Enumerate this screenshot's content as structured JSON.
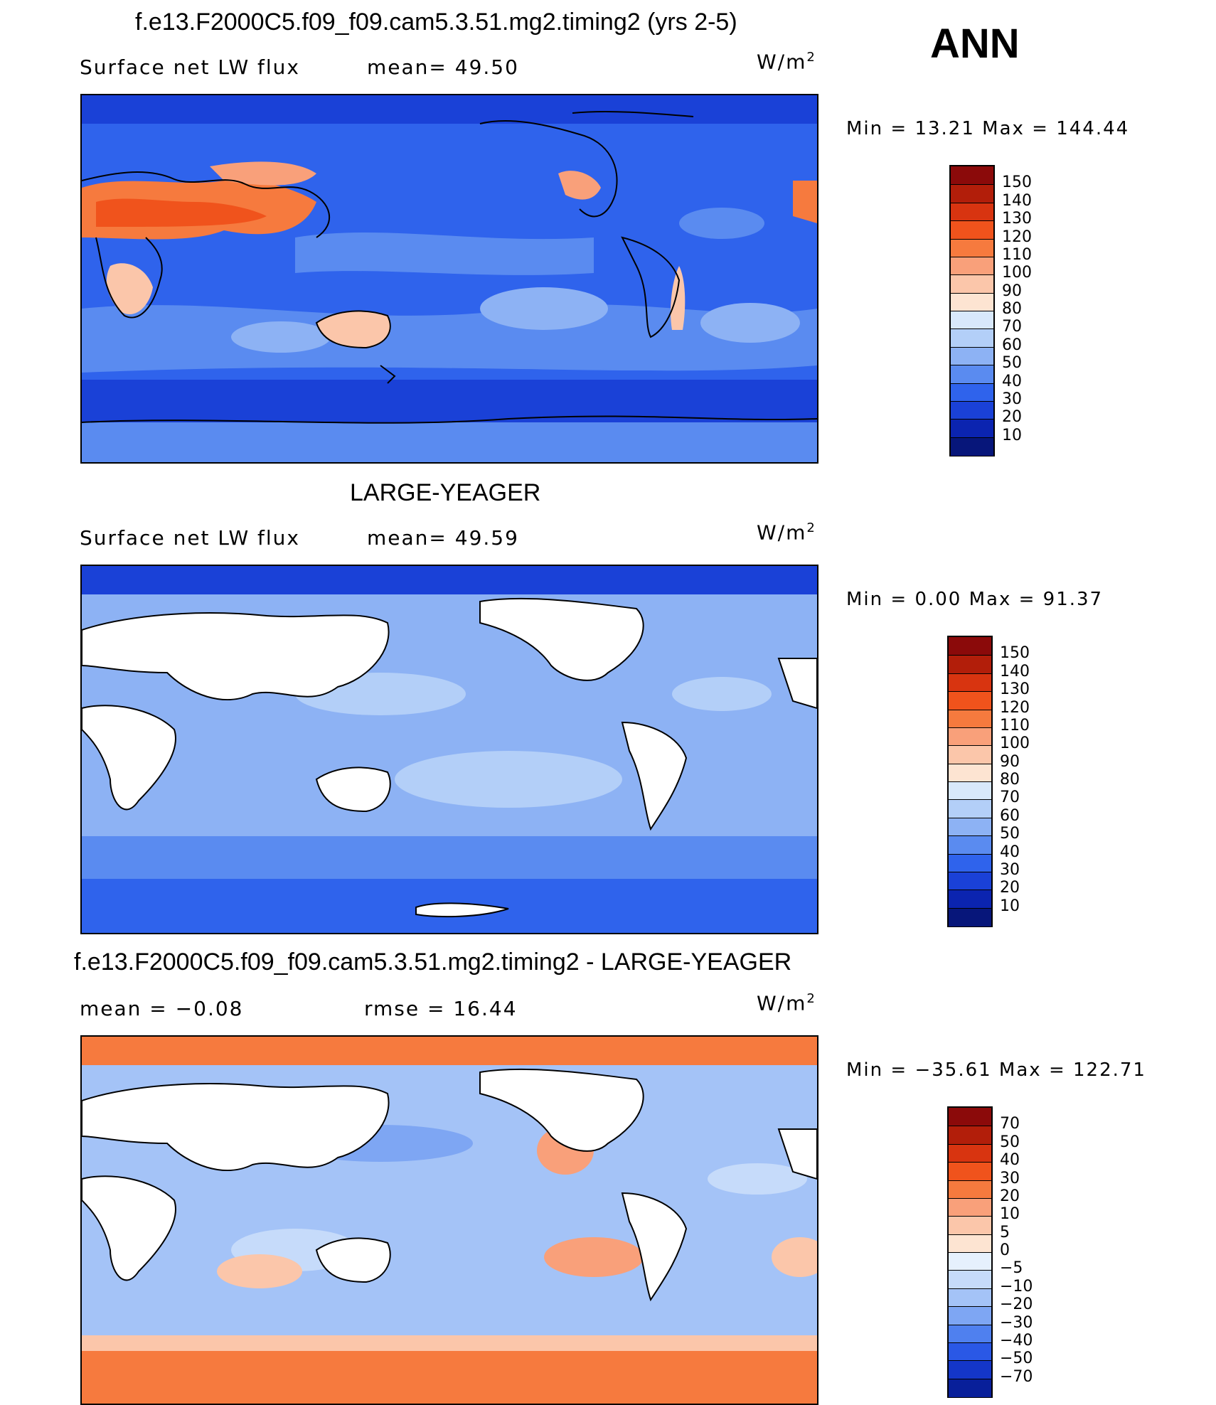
{
  "header": {
    "season": "ANN"
  },
  "panels": [
    {
      "title": "f.e13.F2000C5.f09_f09.cam5.3.51.mg2.timing2 (yrs 2-5)",
      "left_text": "Surface net LW flux",
      "middle_text": "mean=   49.50",
      "units": "W/m",
      "units_sup": "2",
      "stats": "Min =   13.21  Max =  144.44",
      "colorbar": {
        "labels": [
          "150",
          "140",
          "130",
          "120",
          "110",
          "100",
          "90",
          "80",
          "70",
          "60",
          "50",
          "40",
          "30",
          "20",
          "10"
        ],
        "colors": [
          "#8b0a0a",
          "#b21e0a",
          "#d83410",
          "#f0531c",
          "#f67a3e",
          "#f9a07a",
          "#fbc6aa",
          "#fde4d2",
          "#d8e8fb",
          "#b3cff8",
          "#8db2f4",
          "#5a8bf0",
          "#2f63ec",
          "#1a41d7",
          "#0b24b0",
          "#07167a"
        ]
      }
    },
    {
      "title": "LARGE-YEAGER",
      "left_text": "Surface net LW flux",
      "middle_text": "mean=   49.59",
      "units": "W/m",
      "units_sup": "2",
      "stats": "Min =    0.00  Max =   91.37",
      "colorbar": {
        "labels": [
          "150",
          "140",
          "130",
          "120",
          "110",
          "100",
          "90",
          "80",
          "70",
          "60",
          "50",
          "40",
          "30",
          "20",
          "10"
        ],
        "colors": [
          "#8b0a0a",
          "#b21e0a",
          "#d83410",
          "#f0531c",
          "#f67a3e",
          "#f9a07a",
          "#fbc6aa",
          "#fde4d2",
          "#d8e8fb",
          "#b3cff8",
          "#8db2f4",
          "#5a8bf0",
          "#2f63ec",
          "#1a41d7",
          "#0b24b0",
          "#07167a"
        ]
      }
    },
    {
      "title": "f.e13.F2000C5.f09_f09.cam5.3.51.mg2.timing2 - LARGE-YEAGER",
      "left_text": "mean =   −0.08",
      "middle_text": "rmse =    16.44",
      "units": "W/m",
      "units_sup": "2",
      "stats": "Min = −35.61  Max =  122.71",
      "colorbar": {
        "labels": [
          "70",
          "50",
          "40",
          "30",
          "20",
          "10",
          "5",
          "0",
          "−5",
          "−10",
          "−20",
          "−30",
          "−40",
          "−50",
          "−70"
        ],
        "colors": [
          "#8b0a0a",
          "#b21e0a",
          "#d83410",
          "#f0531c",
          "#f67a3e",
          "#f9a07a",
          "#fbc6aa",
          "#fde4d2",
          "#e6f0fd",
          "#c6dbfa",
          "#a4c3f7",
          "#7ea6f3",
          "#4f80ef",
          "#2a58e6",
          "#1436c8",
          "#081f9a"
        ]
      }
    }
  ],
  "colors": {
    "ocean_base": "#2d6cf0",
    "land_white": "#ffffff"
  }
}
